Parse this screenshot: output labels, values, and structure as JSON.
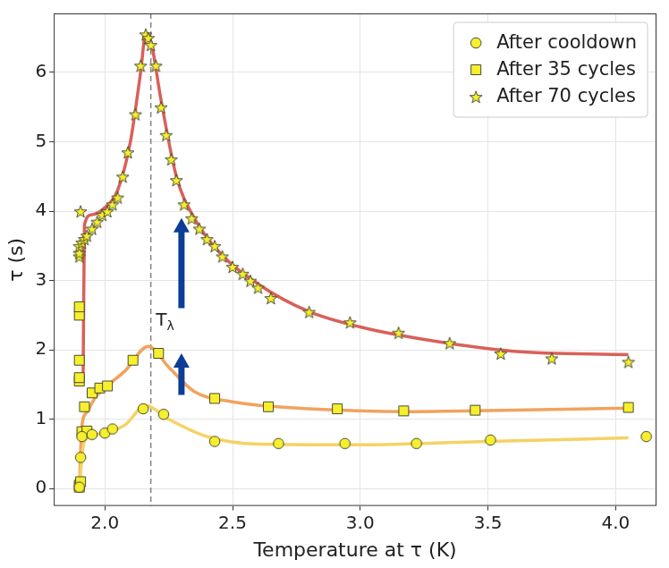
{
  "chart_data": {
    "type": "scatter",
    "x_label": "Temperature at τ (K)",
    "y_label": "τ (s)",
    "xlim": [
      1.8,
      4.16
    ],
    "xticks": [
      {
        "value": 2,
        "label": "2.0"
      },
      {
        "value": 2.5,
        "label": "2.5"
      },
      {
        "value": 3,
        "label": "3.0"
      },
      {
        "value": 3.5,
        "label": "3.5"
      },
      {
        "value": 4,
        "label": "4.0"
      }
    ],
    "ylim": [
      -0.25,
      6.85
    ],
    "yticks": [
      0,
      1,
      2,
      3,
      4,
      5,
      6
    ],
    "grid": true,
    "legend": "upper right",
    "series": [
      {
        "name": "After cooldown",
        "color": "#f5d266",
        "marker": "circle",
        "x": [
          1.9,
          1.905,
          1.91,
          1.95,
          2.0,
          2.03,
          2.15,
          2.23,
          2.43,
          2.68,
          2.94,
          3.22,
          3.51,
          4.12
        ],
        "values": [
          0.02,
          0.45,
          0.75,
          0.78,
          0.8,
          0.86,
          1.15,
          1.07,
          0.68,
          0.65,
          0.65,
          0.65,
          0.7,
          0.75
        ],
        "fit": {
          "x": [
            1.9,
            1.915,
            1.93,
            2.0,
            2.08,
            2.16,
            2.25,
            2.4,
            2.6,
            3.0,
            3.5,
            4.05
          ],
          "values": [
            0,
            0.6,
            0.72,
            0.8,
            0.92,
            1.2,
            1.0,
            0.75,
            0.64,
            0.63,
            0.68,
            0.73
          ]
        }
      },
      {
        "name": "After 35 cycles",
        "color": "#f0a35e",
        "marker": "square",
        "x": [
          1.9,
          1.9,
          1.905,
          1.9,
          1.9,
          1.9,
          1.9,
          1.9,
          1.91,
          1.92,
          1.93,
          1.95,
          1.98,
          2.01,
          2.11,
          2.21,
          2.43,
          2.64,
          2.91,
          3.17,
          3.45,
          4.05
        ],
        "values": [
          0.02,
          0.05,
          0.1,
          1.85,
          1.55,
          1.6,
          2.5,
          2.62,
          0.82,
          1.18,
          0.83,
          1.38,
          1.45,
          1.48,
          1.85,
          1.95,
          1.3,
          1.18,
          1.15,
          1.12,
          1.13,
          1.17
        ],
        "fit": {
          "x": [
            1.9,
            1.91,
            1.93,
            1.96,
            2.0,
            2.08,
            2.17,
            2.25,
            2.35,
            2.5,
            2.8,
            3.2,
            3.6,
            4.05
          ],
          "values": [
            0,
            0.9,
            1.1,
            1.3,
            1.45,
            1.7,
            2.05,
            1.75,
            1.4,
            1.25,
            1.15,
            1.11,
            1.13,
            1.16
          ]
        }
      },
      {
        "name": "After 70 cycles",
        "color": "#d9605a",
        "marker": "star",
        "x": [
          1.9,
          1.9,
          1.9,
          1.91,
          1.905,
          1.92,
          1.93,
          1.95,
          1.97,
          1.99,
          2.01,
          2.03,
          2.05,
          2.07,
          2.09,
          2.12,
          2.14,
          2.16,
          2.17,
          2.18,
          2.2,
          2.22,
          2.24,
          2.26,
          2.28,
          2.31,
          2.34,
          2.37,
          2.4,
          2.43,
          2.46,
          2.5,
          2.54,
          2.57,
          2.6,
          2.65,
          2.8,
          2.96,
          3.15,
          3.35,
          3.55,
          3.75,
          4.05
        ],
        "values": [
          3.35,
          3.4,
          3.5,
          3.55,
          4.0,
          3.6,
          3.65,
          3.75,
          3.85,
          3.95,
          4.0,
          4.1,
          4.2,
          4.5,
          4.85,
          5.4,
          6.1,
          6.55,
          6.5,
          6.4,
          6.1,
          5.5,
          5.1,
          4.75,
          4.45,
          4.1,
          3.9,
          3.75,
          3.6,
          3.5,
          3.35,
          3.2,
          3.1,
          3.0,
          2.9,
          2.75,
          2.55,
          2.4,
          2.25,
          2.1,
          1.95,
          1.88,
          1.83
        ],
        "fit": {
          "x": [
            1.915,
            1.92,
            1.95,
            2.0,
            2.05,
            2.1,
            2.14,
            2.16,
            2.18,
            2.22,
            2.28,
            2.35,
            2.45,
            2.6,
            2.8,
            3.0,
            3.3,
            3.6,
            4.05
          ],
          "values": [
            1.6,
            3.8,
            3.95,
            4.05,
            4.3,
            5.0,
            6.0,
            6.55,
            6.45,
            5.6,
            4.5,
            3.9,
            3.4,
            2.95,
            2.55,
            2.33,
            2.12,
            1.98,
            1.93
          ]
        }
      }
    ],
    "annotations": [
      {
        "type": "vline",
        "x": 2.18,
        "color": "#808080",
        "line_style": "dashed"
      },
      {
        "type": "text",
        "text": "Tλ",
        "x": 2.2,
        "y": 2.35
      },
      {
        "type": "arrow",
        "from": [
          2.3,
          1.35
        ],
        "to": [
          2.3,
          1.95
        ],
        "color": "#0d3d96"
      },
      {
        "type": "arrow",
        "from": [
          2.3,
          2.6
        ],
        "to": [
          2.3,
          3.9
        ],
        "color": "#0d3d96"
      }
    ]
  }
}
